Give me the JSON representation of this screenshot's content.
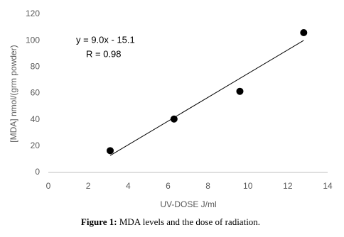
{
  "chart_data": {
    "type": "scatter",
    "x_label": "UV-DOSE  J/ml",
    "y_label": "[MDA]   nmol/(grm powder)",
    "x": [
      3.1,
      6.3,
      9.6,
      12.8
    ],
    "values": [
      16.5,
      40.5,
      61.5,
      106
    ],
    "color": "#000000",
    "xlim": [
      0,
      14
    ],
    "xticks": [
      0,
      2,
      4,
      6,
      8,
      10,
      12,
      14
    ],
    "ylim": [
      0,
      120
    ],
    "yticks": [
      0,
      20,
      40,
      60,
      80,
      100,
      120
    ],
    "trendline": {
      "slope": 9.0,
      "intercept": -15.1,
      "equation": "y = 9.0x - 15.1",
      "r_label": "R = 0.98"
    }
  },
  "caption": {
    "label": "Figure 1:",
    "text": "MDA levels and the dose of radiation."
  }
}
